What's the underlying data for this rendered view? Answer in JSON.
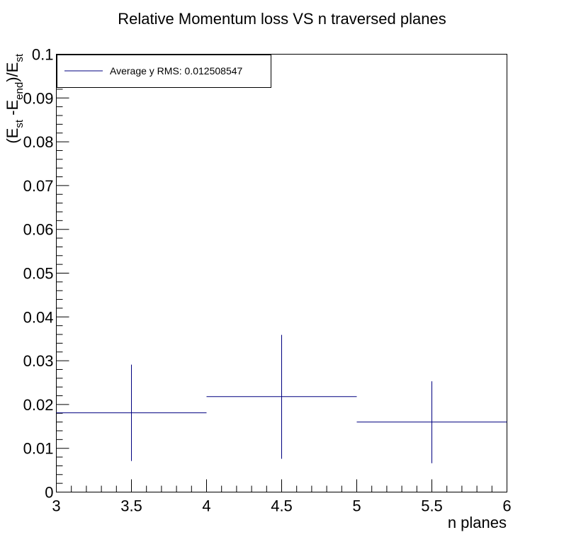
{
  "chart_data": {
    "type": "scatter",
    "title": "Relative Momentum loss VS n traversed planes",
    "xlabel": "n planes",
    "ylabel_parts": {
      "open": "(E",
      "sub1": "st",
      "mid": " -E",
      "sub2": "end",
      "close": ")/E",
      "sub3": "st"
    },
    "xlim": [
      3,
      6
    ],
    "ylim": [
      0,
      0.1
    ],
    "x_ticks": [
      3,
      3.5,
      4,
      4.5,
      5,
      5.5,
      6
    ],
    "x_tick_labels": [
      "3",
      "3.5",
      "4",
      "4.5",
      "5",
      "5.5",
      "6"
    ],
    "y_ticks": [
      0,
      0.01,
      0.02,
      0.03,
      0.04,
      0.05,
      0.06,
      0.07,
      0.08,
      0.09,
      0.1
    ],
    "y_tick_labels": [
      "0",
      "0.01",
      "0.02",
      "0.03",
      "0.04",
      "0.05",
      "0.06",
      "0.07",
      "0.08",
      "0.09",
      "0.1"
    ],
    "legend": {
      "position": "top-left",
      "label": "Average y RMS: 0.012508547"
    },
    "series": [
      {
        "color": "#000080",
        "points": [
          {
            "x": 3.5,
            "y": 0.0181,
            "x_err": 0.5,
            "y_low": 0.0071,
            "y_high": 0.0291
          },
          {
            "x": 4.5,
            "y": 0.0218,
            "x_err": 0.5,
            "y_low": 0.0076,
            "y_high": 0.0359
          },
          {
            "x": 5.5,
            "y": 0.016,
            "x_err": 0.5,
            "y_low": 0.0066,
            "y_high": 0.0253
          }
        ]
      }
    ],
    "grid": false
  }
}
